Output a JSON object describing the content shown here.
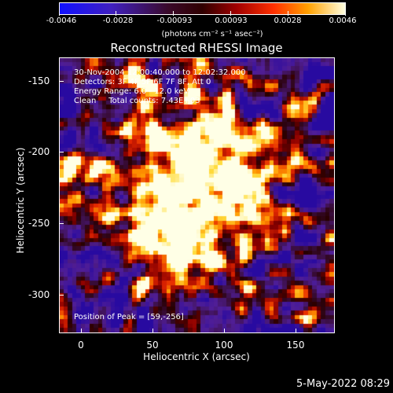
{
  "colorbar": {
    "ticks": [
      "-0.0046",
      "-0.0028",
      "-0.00093",
      "0.00093",
      "0.0028",
      "0.0046"
    ],
    "units": "(photons cm⁻² s⁻¹ asec⁻²)"
  },
  "title": "Reconstructed RHESSI Image",
  "info": {
    "line1": "30-Nov-2004 12:00:40.000 to 12:02:32.000",
    "line2": "Detectors: 3F 4F 5F 6F 7F 8F, Att 0",
    "line3": "Energy Range: 6.0 - 12.0 keV",
    "line4": "Clean     Total counts: 7.43E+03",
    "peak": "Position of Peak = [59,-256]"
  },
  "axes": {
    "xlabel": "Heliocentric X (arcsec)",
    "ylabel": "Heliocentric Y (arcsec)",
    "xticks": [
      "0",
      "50",
      "100",
      "150"
    ],
    "yticks": [
      "-150",
      "-200",
      "-250",
      "-300"
    ]
  },
  "footer": {
    "date": "5-May-2022 08:29"
  }
}
